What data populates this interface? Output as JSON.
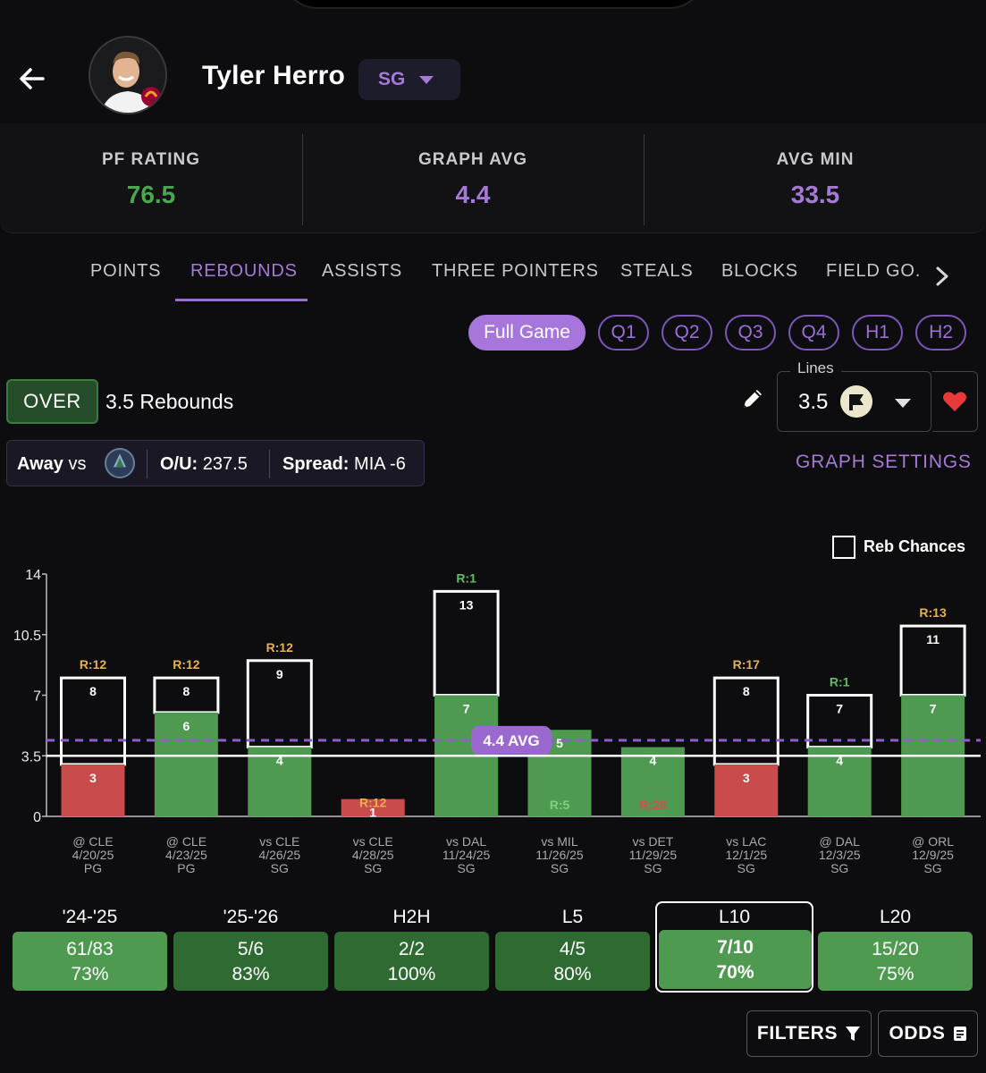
{
  "header": {
    "player_name": "Tyler Herro",
    "position": "SG"
  },
  "stats": [
    {
      "label": "PF RATING",
      "value": "76.5",
      "color": "#4aa64f"
    },
    {
      "label": "GRAPH AVG",
      "value": "4.4",
      "color": "#a57ad6"
    },
    {
      "label": "AVG MIN",
      "value": "33.5",
      "color": "#a57ad6"
    }
  ],
  "tabs": [
    "POINTS",
    "REBOUNDS",
    "ASSISTS",
    "THREE POINTERS",
    "STEALS",
    "BLOCKS",
    "FIELD GO."
  ],
  "active_tab": "REBOUNDS",
  "periods": [
    "Full Game",
    "Q1",
    "Q2",
    "Q3",
    "Q4",
    "H1",
    "H2"
  ],
  "active_period": "Full Game",
  "prop": {
    "side": "OVER",
    "line_text": "3.5 Rebounds",
    "lines_label": "Lines",
    "lines_value": "3.5"
  },
  "matchup": {
    "location": "Away",
    "vs": "vs",
    "ou_label": "O/U:",
    "ou_value": "237.5",
    "spread_label": "Spread:",
    "spread_value": "MIA -6"
  },
  "graph_settings_label": "GRAPH SETTINGS",
  "reb_chances_label": "Reb Chances",
  "chart_data": {
    "type": "bar",
    "y_ticks": [
      "0",
      "3.5",
      "7",
      "10.5",
      "14"
    ],
    "ylim": [
      0,
      14
    ],
    "line": 3.5,
    "average": 4.4,
    "average_label": "4.4 AVG",
    "games": [
      {
        "opp": "@ CLE",
        "date": "4/20/25",
        "pos": "PG",
        "rebounds": 3,
        "chances": 8,
        "r_label": "R:12",
        "r_color": "#e6b24a"
      },
      {
        "opp": "@ CLE",
        "date": "4/23/25",
        "pos": "PG",
        "rebounds": 6,
        "chances": 8,
        "r_label": "R:12",
        "r_color": "#e6b24a"
      },
      {
        "opp": "vs CLE",
        "date": "4/26/25",
        "pos": "SG",
        "rebounds": 4,
        "chances": 9,
        "r_label": "R:12",
        "r_color": "#e6b24a"
      },
      {
        "opp": "vs CLE",
        "date": "4/28/25",
        "pos": "SG",
        "rebounds": 1,
        "chances": null,
        "r_label": "R:12",
        "r_color": "#e6b24a"
      },
      {
        "opp": "vs DAL",
        "date": "11/24/25",
        "pos": "SG",
        "rebounds": 7,
        "chances": 13,
        "r_label": "R:1",
        "r_color": "#5fbf63"
      },
      {
        "opp": "vs MIL",
        "date": "11/26/25",
        "pos": "SG",
        "rebounds": 5,
        "chances": null,
        "r_label": "R:5",
        "r_color": "#7fcf83"
      },
      {
        "opp": "vs DET",
        "date": "11/29/25",
        "pos": "SG",
        "rebounds": 4,
        "chances": null,
        "r_label": "R:28",
        "r_color": "#d05050"
      },
      {
        "opp": "vs LAC",
        "date": "12/1/25",
        "pos": "SG",
        "rebounds": 3,
        "chances": 8,
        "r_label": "R:17",
        "r_color": "#e6b24a"
      },
      {
        "opp": "@ DAL",
        "date": "12/3/25",
        "pos": "SG",
        "rebounds": 4,
        "chances": 7,
        "r_label": "R:1",
        "r_color": "#5fbf63"
      },
      {
        "opp": "@ ORL",
        "date": "12/9/25",
        "pos": "SG",
        "rebounds": 7,
        "chances": 11,
        "r_label": "R:13",
        "r_color": "#e6b24a"
      }
    ]
  },
  "splits": [
    {
      "label": "'24-'25",
      "record": "61/83",
      "pct": "73%",
      "bg": "#4e9a50"
    },
    {
      "label": "'25-'26",
      "record": "5/6",
      "pct": "83%",
      "bg": "#2f6a32"
    },
    {
      "label": "H2H",
      "record": "2/2",
      "pct": "100%",
      "bg": "#2f6a32"
    },
    {
      "label": "L5",
      "record": "4/5",
      "pct": "80%",
      "bg": "#2f6a32"
    },
    {
      "label": "L10",
      "record": "7/10",
      "pct": "70%",
      "bg": "#4e9a50"
    },
    {
      "label": "L20",
      "record": "15/20",
      "pct": "75%",
      "bg": "#4e9a50"
    }
  ],
  "selected_split": "L10",
  "footer": {
    "filters_label": "FILTERS",
    "odds_label": "ODDS"
  },
  "colors": {
    "accent": "#a57ad6",
    "hit": "#4e9a50",
    "miss": "#c94b4b",
    "avg_line": "#8e5fc8"
  },
  "icons": {
    "back": "arrow-left-icon",
    "edit": "pencil-icon",
    "favorite": "heart-icon",
    "filters": "funnel-icon",
    "odds": "receipt-icon",
    "more_tabs": "chevron-right-icon"
  }
}
